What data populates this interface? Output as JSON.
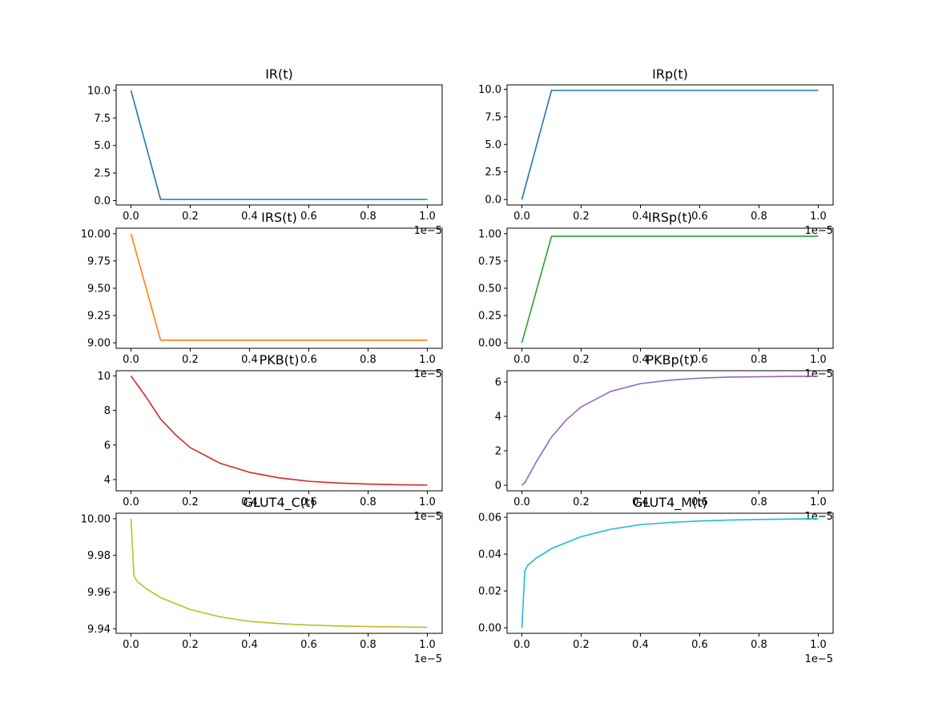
{
  "chart_data": [
    {
      "type": "line",
      "title": "IR(t)",
      "color": "#1f77b4",
      "x": [
        0,
        0.1,
        1.0
      ],
      "y": [
        10.0,
        0.1,
        0.1
      ],
      "xlim": [
        -0.05,
        1.05
      ],
      "ylim": [
        -0.4,
        10.5
      ],
      "xticks": [
        0,
        0.2,
        0.4,
        0.6,
        0.8,
        1.0
      ],
      "xticklabels": [
        "0.0",
        "0.2",
        "0.4",
        "0.6",
        "0.8",
        "1.0"
      ],
      "yticks": [
        0,
        2.5,
        5,
        7.5,
        10
      ],
      "yticklabels": [
        "0.0",
        "2.5",
        "5.0",
        "7.5",
        "10.0"
      ],
      "x_offset_label": "1e−5"
    },
    {
      "type": "line",
      "title": "IRp(t)",
      "color": "#1f77b4",
      "x": [
        0,
        0.1,
        1.0
      ],
      "y": [
        0,
        9.9,
        9.9
      ],
      "xlim": [
        -0.05,
        1.05
      ],
      "ylim": [
        -0.5,
        10.4
      ],
      "xticks": [
        0,
        0.2,
        0.4,
        0.6,
        0.8,
        1.0
      ],
      "xticklabels": [
        "0.0",
        "0.2",
        "0.4",
        "0.6",
        "0.8",
        "1.0"
      ],
      "yticks": [
        0,
        2.5,
        5,
        7.5,
        10
      ],
      "yticklabels": [
        "0.0",
        "2.5",
        "5.0",
        "7.5",
        "10.0"
      ],
      "x_offset_label": "1e−5"
    },
    {
      "type": "line",
      "title": "IRS(t)",
      "color": "#ff7f0e",
      "x": [
        0,
        0.1,
        1.0
      ],
      "y": [
        10.0,
        9.024,
        9.024
      ],
      "xlim": [
        -0.05,
        1.05
      ],
      "ylim": [
        8.95,
        10.05
      ],
      "xticks": [
        0,
        0.2,
        0.4,
        0.6,
        0.8,
        1.0
      ],
      "xticklabels": [
        "0.0",
        "0.2",
        "0.4",
        "0.6",
        "0.8",
        "1.0"
      ],
      "yticks": [
        9.0,
        9.25,
        9.5,
        9.75,
        10.0
      ],
      "yticklabels": [
        "9.00",
        "9.25",
        "9.50",
        "9.75",
        "10.00"
      ],
      "x_offset_label": "1e−5"
    },
    {
      "type": "line",
      "title": "IRSp(t)",
      "color": "#2ca02c",
      "x": [
        0,
        0.1,
        1.0
      ],
      "y": [
        0,
        0.976,
        0.976
      ],
      "xlim": [
        -0.05,
        1.05
      ],
      "ylim": [
        -0.05,
        1.05
      ],
      "xticks": [
        0,
        0.2,
        0.4,
        0.6,
        0.8,
        1.0
      ],
      "xticklabels": [
        "0.0",
        "0.2",
        "0.4",
        "0.6",
        "0.8",
        "1.0"
      ],
      "yticks": [
        0,
        0.25,
        0.5,
        0.75,
        1.0
      ],
      "yticklabels": [
        "0.00",
        "0.25",
        "0.50",
        "0.75",
        "1.00"
      ],
      "x_offset_label": "1e−5"
    },
    {
      "type": "line",
      "title": "PKB(t)",
      "color": "#d62728",
      "x": [
        0,
        0.05,
        0.1,
        0.15,
        0.2,
        0.3,
        0.4,
        0.5,
        0.6,
        0.7,
        0.8,
        0.9,
        1.0
      ],
      "y": [
        10.0,
        8.8,
        7.5,
        6.6,
        5.85,
        4.95,
        4.42,
        4.1,
        3.9,
        3.8,
        3.74,
        3.7,
        3.68
      ],
      "xlim": [
        -0.05,
        1.05
      ],
      "ylim": [
        3.35,
        10.3
      ],
      "xticks": [
        0,
        0.2,
        0.4,
        0.6,
        0.8,
        1.0
      ],
      "xticklabels": [
        "0.0",
        "0.2",
        "0.4",
        "0.6",
        "0.8",
        "1.0"
      ],
      "yticks": [
        4,
        6,
        8,
        10
      ],
      "yticklabels": [
        "4",
        "6",
        "8",
        "10"
      ],
      "x_offset_label": "1e−5"
    },
    {
      "type": "line",
      "title": "PKBp(t)",
      "color": "#9467bd",
      "x": [
        0,
        0.01,
        0.05,
        0.1,
        0.15,
        0.2,
        0.3,
        0.4,
        0.5,
        0.6,
        0.7,
        0.8,
        0.9,
        1.0
      ],
      "y": [
        0,
        0.15,
        1.4,
        2.8,
        3.8,
        4.55,
        5.45,
        5.9,
        6.1,
        6.22,
        6.28,
        6.3,
        6.32,
        6.33
      ],
      "xlim": [
        -0.05,
        1.05
      ],
      "ylim": [
        -0.32,
        6.65
      ],
      "xticks": [
        0,
        0.2,
        0.4,
        0.6,
        0.8,
        1.0
      ],
      "xticklabels": [
        "0.0",
        "0.2",
        "0.4",
        "0.6",
        "0.8",
        "1.0"
      ],
      "yticks": [
        0,
        2,
        4,
        6
      ],
      "yticklabels": [
        "0",
        "2",
        "4",
        "6"
      ],
      "x_offset_label": "1e−5"
    },
    {
      "type": "line",
      "title": "GLUT4_C(t)",
      "color": "#bcbd22",
      "x": [
        0,
        0.01,
        0.02,
        0.05,
        0.1,
        0.2,
        0.3,
        0.4,
        0.5,
        0.6,
        0.7,
        0.8,
        0.9,
        1.0
      ],
      "y": [
        10.0,
        9.969,
        9.966,
        9.962,
        9.957,
        9.9505,
        9.9465,
        9.944,
        9.9428,
        9.942,
        9.9415,
        9.9412,
        9.941,
        9.9408
      ],
      "xlim": [
        -0.05,
        1.05
      ],
      "ylim": [
        9.9375,
        10.003
      ],
      "xticks": [
        0,
        0.2,
        0.4,
        0.6,
        0.8,
        1.0
      ],
      "xticklabels": [
        "0.0",
        "0.2",
        "0.4",
        "0.6",
        "0.8",
        "1.0"
      ],
      "yticks": [
        9.94,
        9.96,
        9.98,
        10.0
      ],
      "yticklabels": [
        "9.94",
        "9.96",
        "9.98",
        "10.00"
      ],
      "x_offset_label": "1e−5"
    },
    {
      "type": "line",
      "title": "GLUT4_M(t)",
      "color": "#17becf",
      "x": [
        0,
        0.01,
        0.02,
        0.05,
        0.1,
        0.2,
        0.3,
        0.4,
        0.5,
        0.6,
        0.7,
        0.8,
        0.9,
        1.0
      ],
      "y": [
        0,
        0.031,
        0.034,
        0.038,
        0.043,
        0.0495,
        0.0535,
        0.056,
        0.0572,
        0.058,
        0.0585,
        0.0588,
        0.059,
        0.0592
      ],
      "xlim": [
        -0.05,
        1.05
      ],
      "ylim": [
        -0.003,
        0.0622
      ],
      "xticks": [
        0,
        0.2,
        0.4,
        0.6,
        0.8,
        1.0
      ],
      "xticklabels": [
        "0.0",
        "0.2",
        "0.4",
        "0.6",
        "0.8",
        "1.0"
      ],
      "yticks": [
        0,
        0.02,
        0.04,
        0.06
      ],
      "yticklabels": [
        "0.00",
        "0.02",
        "0.04",
        "0.06"
      ],
      "x_offset_label": "1e−5"
    }
  ]
}
